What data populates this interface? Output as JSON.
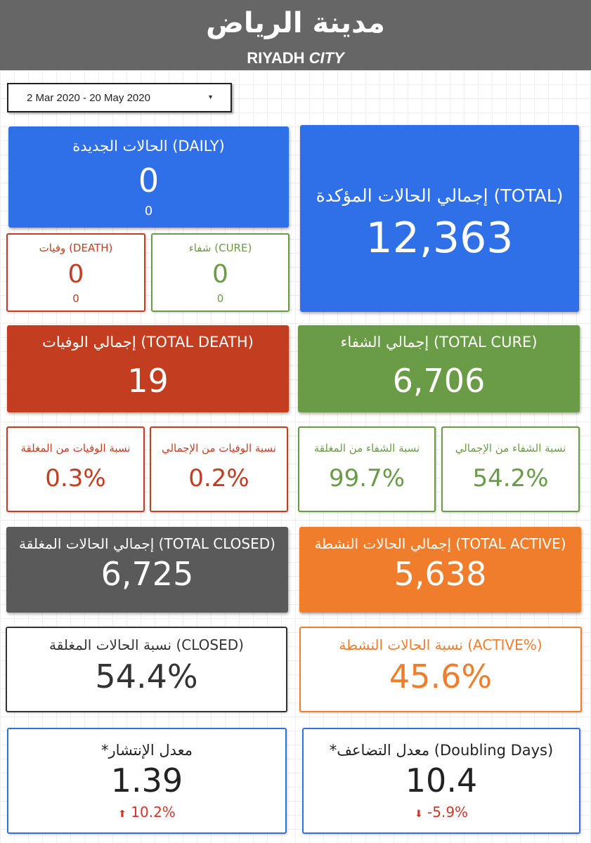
{
  "header": {
    "title_ar": "مدينة الرياض",
    "title_en_a": "RIYADH ",
    "title_en_b": "CITY"
  },
  "date_range": {
    "value": "2 Mar 2020 - 20 May 2020"
  },
  "daily": {
    "label": "الحالات الجديدة (DAILY)",
    "value": "0",
    "sub": "0"
  },
  "total_confirmed": {
    "label": "إجمالي الحالات المؤكدة (TOTAL)",
    "value": "12,363"
  },
  "death_daily": {
    "label": "وفيات (DEATH)",
    "value": "0",
    "sub": "0"
  },
  "cure_daily": {
    "label": "شفاء (CURE)",
    "value": "0",
    "sub": "0"
  },
  "total_death": {
    "label": "إجمالي الوفيات (TOTAL DEATH)",
    "value": "19"
  },
  "total_cure": {
    "label": "إجمالي الشفاء (TOTAL CURE)",
    "value": "6,706"
  },
  "death_closed_ratio": {
    "label": "نسبة الوفيات من المغلقة",
    "value": "0.3%"
  },
  "death_total_ratio": {
    "label": "نسبة الوفيات من الإجمالي",
    "value": "0.2%"
  },
  "cure_closed_ratio": {
    "label": "نسبة الشفاء من المغلقة",
    "value": "99.7%"
  },
  "cure_total_ratio": {
    "label": "نسبة الشفاء من الإجمالي",
    "value": "54.2%"
  },
  "total_closed": {
    "label": "إجمالي الحالات المغلقة (TOTAL CLOSED)",
    "value": "6,725"
  },
  "total_active": {
    "label": "إجمالي الحالات النشطة (TOTAL ACTIVE)",
    "value": "5,638"
  },
  "closed_pct": {
    "label": "نسبة الحالات المغلقة (CLOSED)",
    "value": "54.4%"
  },
  "active_pct": {
    "label": "نسبة الحالات النشطة (ACTIVE%)",
    "value": "45.6%"
  },
  "spread_rate": {
    "label": "*معدل الإنتشار",
    "value": "1.39",
    "change_arrow": "⬆",
    "change": "10.2%"
  },
  "doubling": {
    "label": "*معدل التضاعف (Doubling Days)",
    "value": "10.4",
    "change_arrow": "⬇",
    "change": "-5.9%"
  },
  "colors": {
    "header": "#666666",
    "blue": "#2f6fe8",
    "red": "#c33e21",
    "green": "#6a9b47",
    "gray": "#5a5a5a",
    "orange": "#ef7d2b",
    "dark_text": "#333333"
  }
}
